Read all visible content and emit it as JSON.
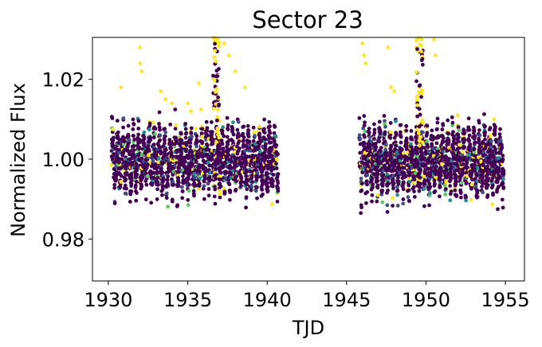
{
  "chart_data": {
    "type": "scatter",
    "title": "Sector 23",
    "xlabel": "TJD",
    "ylabel": "Normalized Flux",
    "xlim": [
      1929.0,
      1956.2
    ],
    "ylim": [
      0.9695,
      1.0305
    ],
    "xticks": [
      1930,
      1935,
      1940,
      1945,
      1950,
      1955
    ],
    "xtick_labels": [
      "1930",
      "1935",
      "1940",
      "1945",
      "1950",
      "1955"
    ],
    "yticks": [
      0.98,
      1.0,
      1.02
    ],
    "ytick_labels": [
      "0.98",
      "1.00",
      "1.02"
    ],
    "grid": false,
    "legend": "none",
    "colormap": [
      "#440154",
      "#3b528b",
      "#21918c",
      "#5ec962",
      "#fde725"
    ],
    "segments": [
      {
        "x_start": 1930.2,
        "x_end": 1940.7,
        "y_center": 0.9998,
        "spread": 0.0115
      },
      {
        "x_start": 1945.8,
        "x_end": 1954.9,
        "y_center": 0.9995,
        "spread": 0.0115
      }
    ],
    "features": [
      {
        "x": 1936.8,
        "y_peak": 1.0305,
        "note": "flare"
      },
      {
        "x": 1949.6,
        "y_peak": 1.0305,
        "note": "flare"
      }
    ]
  }
}
